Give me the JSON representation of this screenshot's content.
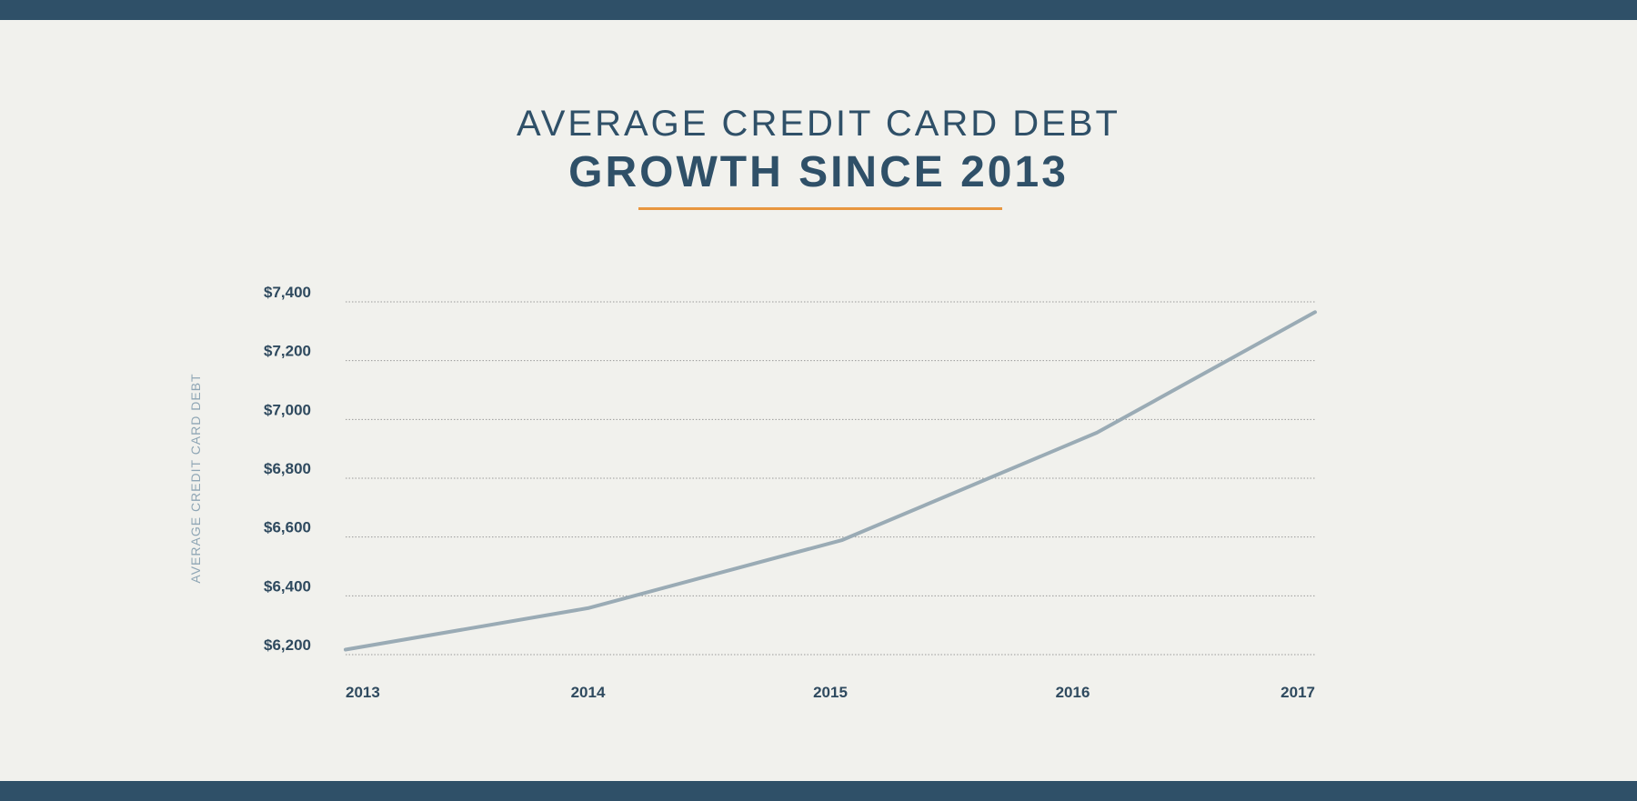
{
  "colors": {
    "band": "#2f5068",
    "background": "#f1f1ed",
    "title": "#2f5068",
    "accent": "#e8963f",
    "line": "#9aabb5",
    "grid": "#9a9a9a",
    "tick_text": "#2f4a5f",
    "axis_label": "#8fa6b5"
  },
  "header": {
    "title_line1": "AVERAGE CREDIT CARD DEBT",
    "title_line2": "GROWTH SINCE 2013"
  },
  "chart_data": {
    "type": "line",
    "title": "AVERAGE CREDIT CARD DEBT GROWTH SINCE 2013",
    "xlabel": "",
    "ylabel": "AVERAGE CREDIT CARD DEBT",
    "x": [
      2013,
      2014,
      2015,
      2016,
      2017
    ],
    "x_tick_labels": [
      "2013",
      "2014",
      "2015",
      "2016",
      "2017"
    ],
    "y_ticks": [
      6200,
      6400,
      6600,
      6800,
      7000,
      7200,
      7400
    ],
    "y_tick_labels": [
      "$6,200",
      "$6,400",
      "$6,600",
      "$6,800",
      "$7,000",
      "$7,200",
      "$7,400"
    ],
    "ylim": [
      6200,
      7400
    ],
    "grid": "horizontal dotted",
    "legend": "none",
    "series": [
      {
        "points": [
          {
            "x": 2013,
            "y": 6217
          },
          {
            "x": 2014,
            "y": 6358
          },
          {
            "x": 2015.05,
            "y": 6590
          },
          {
            "x": 2016.1,
            "y": 6955
          },
          {
            "x": 2017,
            "y": 7365
          }
        ]
      }
    ]
  }
}
